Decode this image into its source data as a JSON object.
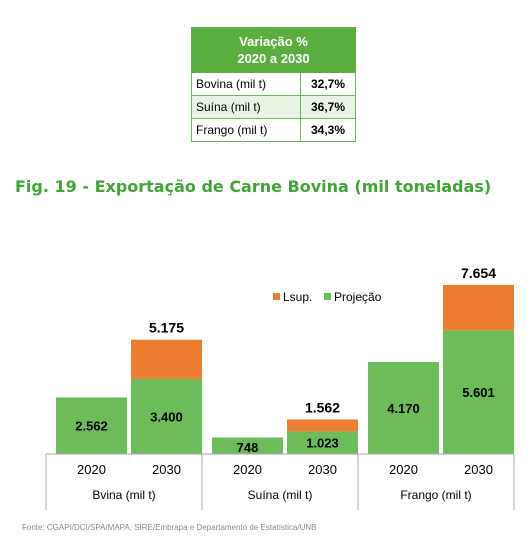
{
  "table": {
    "header_line1": "Variação %",
    "header_line2": "2020 a 2030",
    "rows": [
      {
        "label": "Bovina (mil t)",
        "value": "32,7%"
      },
      {
        "label": "Suína (mil t)",
        "value": "36,7%"
      },
      {
        "label": "Frango (mil t)",
        "value": "34,3%"
      }
    ]
  },
  "figure_title": "Fig. 19 - Exportação de Carne Bovina (mil toneladas)",
  "source": "Fonte: CGAPI/DCI/SPA/MAPA, SIRE/Embrapa e Departamento de Estatística/UNB",
  "colors": {
    "projecao": "#6cbd5a",
    "lsup": "#ed7d31",
    "header_green": "#5aae3f"
  },
  "chart_data": {
    "type": "bar",
    "stacked": true,
    "legend": {
      "position": "top-right",
      "entries": [
        "Lsup.",
        "Projeção"
      ]
    },
    "groups": [
      "Bvina (mil t)",
      "Suína (mil t)",
      "Frango (mil t)"
    ],
    "years": [
      "2020",
      "2030"
    ],
    "bars": [
      {
        "group": 0,
        "year": "2020",
        "projecao": 2562,
        "lsup": 0,
        "projecao_label": "2.562",
        "total_label": ""
      },
      {
        "group": 0,
        "year": "2030",
        "projecao": 3400,
        "lsup": 1775,
        "projecao_label": "3.400",
        "total_label": "5.175"
      },
      {
        "group": 1,
        "year": "2020",
        "projecao": 748,
        "lsup": 0,
        "projecao_label": "748",
        "total_label": ""
      },
      {
        "group": 1,
        "year": "2030",
        "projecao": 1023,
        "lsup": 539,
        "projecao_label": "1.023",
        "total_label": "1.562"
      },
      {
        "group": 2,
        "year": "2020",
        "projecao": 4170,
        "lsup": 0,
        "projecao_label": "4.170",
        "total_label": ""
      },
      {
        "group": 2,
        "year": "2030",
        "projecao": 5601,
        "lsup": 2053,
        "projecao_label": "5.601",
        "total_label": "7.654"
      }
    ],
    "ylim": [
      0,
      8000
    ],
    "grid": false
  }
}
